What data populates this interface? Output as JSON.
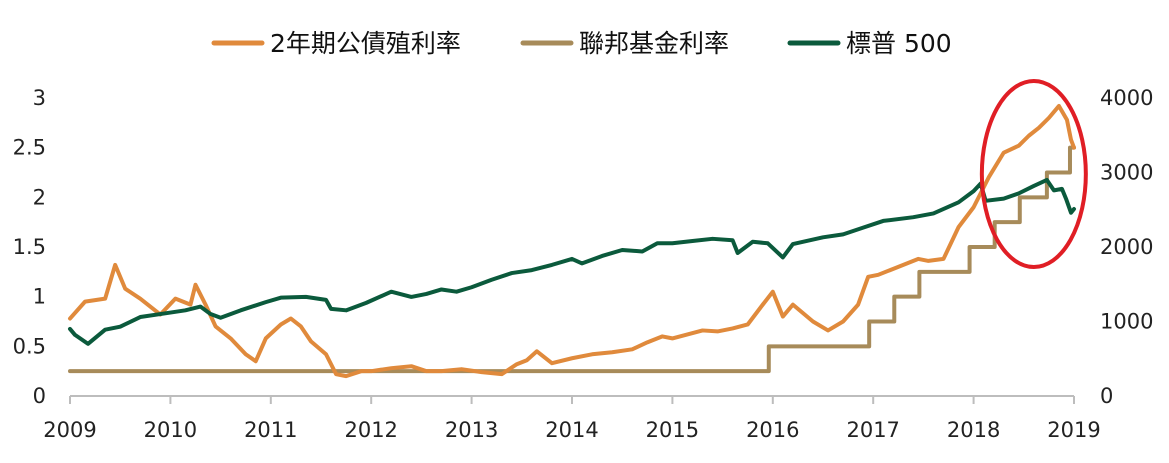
{
  "chart_data": {
    "type": "line",
    "title": "",
    "xlabel": "",
    "ylabel_left": "",
    "ylabel_right": "",
    "x_ticks": [
      "2009",
      "2010",
      "2011",
      "2012",
      "2013",
      "2014",
      "2015",
      "2016",
      "2017",
      "2018",
      "2019"
    ],
    "xlim": [
      2009,
      2019
    ],
    "ylim_left": [
      0,
      3
    ],
    "y_ticks_left": [
      "0",
      "0.5",
      "1",
      "1.5",
      "2",
      "2.5",
      "3"
    ],
    "ylim_right": [
      0,
      4000
    ],
    "y_ticks_right": [
      "0",
      "1000",
      "2000",
      "3000",
      "4000"
    ],
    "grid": false,
    "legend_position": "top",
    "legend": [
      "2年期公債殖利率",
      "聯邦基金利率",
      "標普 500"
    ],
    "colors": {
      "treasury": "#E08A3C",
      "fed": "#A78B5A",
      "sp500": "#0B5A3C",
      "highlight_circle": "#E01E25",
      "axis": "#BDBDBD"
    },
    "series": [
      {
        "name": "2年期公債殖利率",
        "axis": "left",
        "points": [
          [
            2009.0,
            0.78
          ],
          [
            2009.15,
            0.95
          ],
          [
            2009.35,
            0.98
          ],
          [
            2009.45,
            1.32
          ],
          [
            2009.55,
            1.08
          ],
          [
            2009.7,
            0.98
          ],
          [
            2009.9,
            0.82
          ],
          [
            2010.05,
            0.98
          ],
          [
            2010.2,
            0.92
          ],
          [
            2010.25,
            1.12
          ],
          [
            2010.35,
            0.92
          ],
          [
            2010.45,
            0.7
          ],
          [
            2010.6,
            0.58
          ],
          [
            2010.75,
            0.42
          ],
          [
            2010.85,
            0.35
          ],
          [
            2010.95,
            0.58
          ],
          [
            2011.1,
            0.72
          ],
          [
            2011.2,
            0.78
          ],
          [
            2011.3,
            0.7
          ],
          [
            2011.4,
            0.55
          ],
          [
            2011.55,
            0.42
          ],
          [
            2011.65,
            0.22
          ],
          [
            2011.75,
            0.2
          ],
          [
            2011.9,
            0.25
          ],
          [
            2012.0,
            0.25
          ],
          [
            2012.2,
            0.28
          ],
          [
            2012.4,
            0.3
          ],
          [
            2012.55,
            0.25
          ],
          [
            2012.7,
            0.25
          ],
          [
            2012.9,
            0.27
          ],
          [
            2013.1,
            0.24
          ],
          [
            2013.3,
            0.22
          ],
          [
            2013.45,
            0.32
          ],
          [
            2013.55,
            0.36
          ],
          [
            2013.65,
            0.45
          ],
          [
            2013.8,
            0.33
          ],
          [
            2014.0,
            0.38
          ],
          [
            2014.2,
            0.42
          ],
          [
            2014.4,
            0.44
          ],
          [
            2014.6,
            0.47
          ],
          [
            2014.75,
            0.54
          ],
          [
            2014.9,
            0.6
          ],
          [
            2015.0,
            0.58
          ],
          [
            2015.15,
            0.62
          ],
          [
            2015.3,
            0.66
          ],
          [
            2015.45,
            0.65
          ],
          [
            2015.6,
            0.68
          ],
          [
            2015.75,
            0.72
          ],
          [
            2015.9,
            0.92
          ],
          [
            2016.0,
            1.05
          ],
          [
            2016.1,
            0.8
          ],
          [
            2016.2,
            0.92
          ],
          [
            2016.4,
            0.75
          ],
          [
            2016.55,
            0.66
          ],
          [
            2016.7,
            0.75
          ],
          [
            2016.85,
            0.92
          ],
          [
            2016.95,
            1.2
          ],
          [
            2017.05,
            1.22
          ],
          [
            2017.2,
            1.28
          ],
          [
            2017.35,
            1.34
          ],
          [
            2017.45,
            1.38
          ],
          [
            2017.55,
            1.36
          ],
          [
            2017.7,
            1.38
          ],
          [
            2017.85,
            1.7
          ],
          [
            2018.0,
            1.9
          ],
          [
            2018.15,
            2.2
          ],
          [
            2018.3,
            2.45
          ],
          [
            2018.45,
            2.52
          ],
          [
            2018.55,
            2.62
          ],
          [
            2018.65,
            2.7
          ],
          [
            2018.75,
            2.8
          ],
          [
            2018.85,
            2.92
          ],
          [
            2018.93,
            2.78
          ],
          [
            2018.97,
            2.58
          ],
          [
            2019.0,
            2.5
          ]
        ]
      },
      {
        "name": "聯邦基金利率",
        "axis": "left",
        "points": [
          [
            2009.0,
            0.25
          ],
          [
            2015.96,
            0.25
          ],
          [
            2015.96,
            0.5
          ],
          [
            2016.96,
            0.5
          ],
          [
            2016.96,
            0.75
          ],
          [
            2017.21,
            0.75
          ],
          [
            2017.21,
            1.0
          ],
          [
            2017.46,
            1.0
          ],
          [
            2017.46,
            1.25
          ],
          [
            2017.96,
            1.25
          ],
          [
            2017.96,
            1.5
          ],
          [
            2018.21,
            1.5
          ],
          [
            2018.21,
            1.75
          ],
          [
            2018.46,
            1.75
          ],
          [
            2018.46,
            2.0
          ],
          [
            2018.73,
            2.0
          ],
          [
            2018.73,
            2.25
          ],
          [
            2018.96,
            2.25
          ],
          [
            2018.96,
            2.5
          ],
          [
            2019.0,
            2.5
          ]
        ]
      },
      {
        "name": "標普 500",
        "axis": "right",
        "points": [
          [
            2009.0,
            900
          ],
          [
            2009.05,
            820
          ],
          [
            2009.18,
            700
          ],
          [
            2009.35,
            890
          ],
          [
            2009.5,
            930
          ],
          [
            2009.7,
            1060
          ],
          [
            2009.95,
            1110
          ],
          [
            2010.15,
            1150
          ],
          [
            2010.3,
            1200
          ],
          [
            2010.4,
            1100
          ],
          [
            2010.5,
            1050
          ],
          [
            2010.7,
            1150
          ],
          [
            2010.95,
            1260
          ],
          [
            2011.1,
            1320
          ],
          [
            2011.35,
            1330
          ],
          [
            2011.55,
            1290
          ],
          [
            2011.6,
            1170
          ],
          [
            2011.75,
            1150
          ],
          [
            2011.95,
            1250
          ],
          [
            2012.2,
            1400
          ],
          [
            2012.4,
            1330
          ],
          [
            2012.55,
            1370
          ],
          [
            2012.7,
            1430
          ],
          [
            2012.85,
            1400
          ],
          [
            2013.0,
            1460
          ],
          [
            2013.2,
            1560
          ],
          [
            2013.4,
            1650
          ],
          [
            2013.6,
            1690
          ],
          [
            2013.8,
            1760
          ],
          [
            2014.0,
            1840
          ],
          [
            2014.1,
            1780
          ],
          [
            2014.3,
            1880
          ],
          [
            2014.5,
            1960
          ],
          [
            2014.7,
            1940
          ],
          [
            2014.85,
            2050
          ],
          [
            2015.0,
            2050
          ],
          [
            2015.2,
            2080
          ],
          [
            2015.4,
            2110
          ],
          [
            2015.6,
            2090
          ],
          [
            2015.65,
            1920
          ],
          [
            2015.8,
            2070
          ],
          [
            2015.95,
            2050
          ],
          [
            2016.1,
            1860
          ],
          [
            2016.2,
            2040
          ],
          [
            2016.5,
            2130
          ],
          [
            2016.7,
            2170
          ],
          [
            2016.9,
            2260
          ],
          [
            2017.1,
            2350
          ],
          [
            2017.4,
            2400
          ],
          [
            2017.6,
            2450
          ],
          [
            2017.85,
            2600
          ],
          [
            2018.0,
            2750
          ],
          [
            2018.07,
            2850
          ],
          [
            2018.12,
            2620
          ],
          [
            2018.3,
            2650
          ],
          [
            2018.45,
            2720
          ],
          [
            2018.6,
            2820
          ],
          [
            2018.73,
            2900
          ],
          [
            2018.8,
            2760
          ],
          [
            2018.88,
            2780
          ],
          [
            2018.92,
            2650
          ],
          [
            2018.97,
            2460
          ],
          [
            2019.0,
            2510
          ]
        ]
      }
    ]
  }
}
